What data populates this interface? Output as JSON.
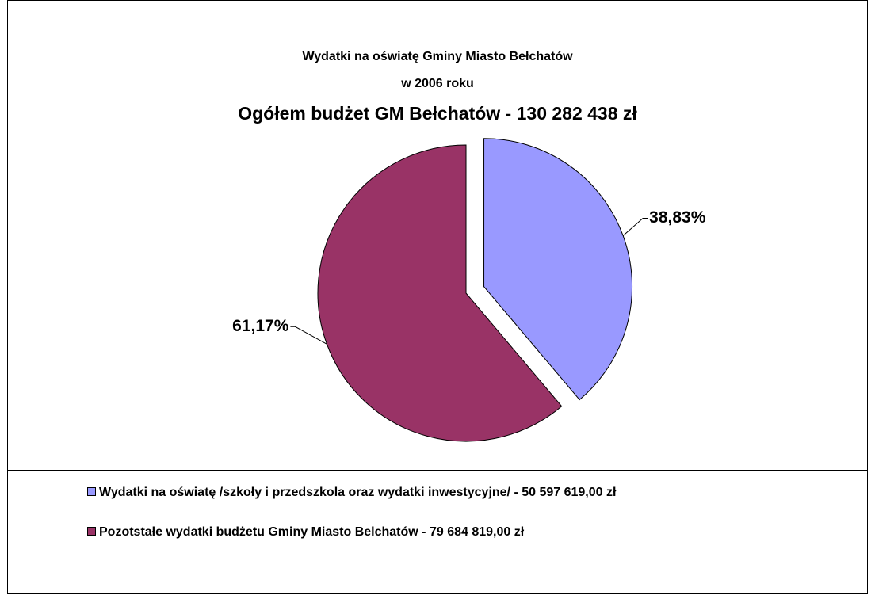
{
  "chart_data": {
    "type": "pie",
    "title": "Wydatki na oświatę Gminy Miasto Bełchatów",
    "subtitle": "w 2006 roku",
    "annotation": "Ogółem budżet GM Bełchatów - 130 282 438 zł",
    "categories": [
      "Wydatki na oświatę /szkoły i przedszkola oraz wydatki inwestycyjne/ - 50 597 619,00 zł",
      "Pozotstałe wydatki budżetu Gminy Miasto Belchatów -  79 684 819,00 zł"
    ],
    "values": [
      38.83,
      61.17
    ],
    "value_labels": [
      "38,83%",
      "61,17%"
    ],
    "colors": [
      "#9999ff",
      "#993366"
    ],
    "exploded": [
      true,
      false
    ]
  }
}
